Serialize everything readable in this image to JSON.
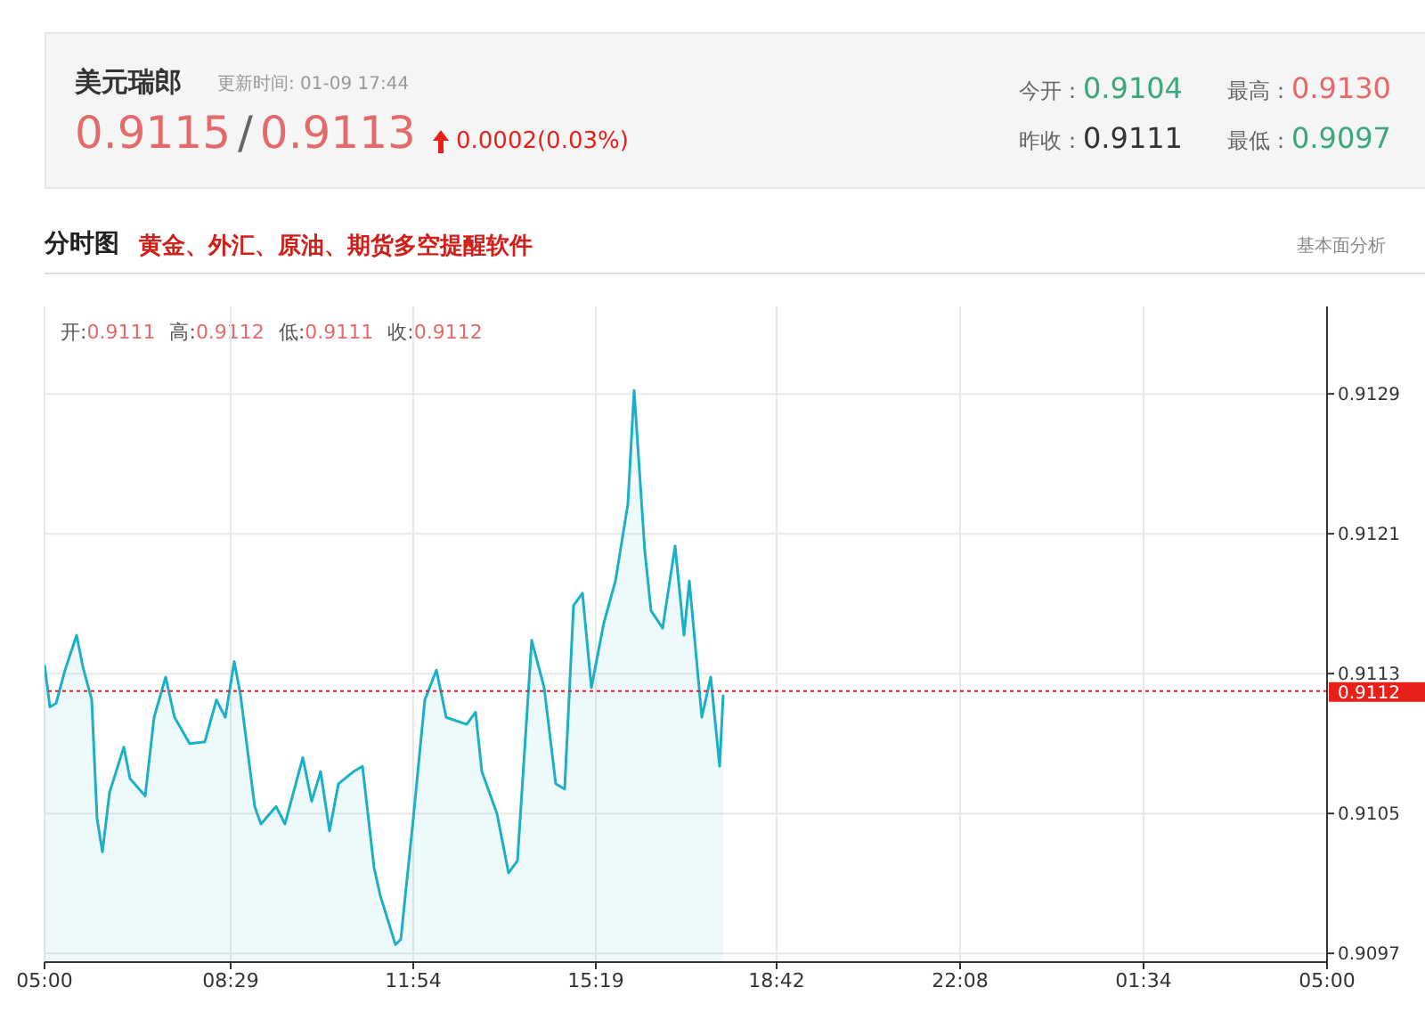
{
  "chart_data": {
    "type": "area",
    "title": "美元瑞郎",
    "subtitle": "更新时间: 01-09 17:44",
    "annotations": [
      "0.9115",
      "/",
      "0.9113",
      "0.0002(0.03%)",
      "今开：",
      "0.9104",
      "最高：",
      "0.9130",
      "昨收：",
      "0.9111",
      "最低：",
      "0.9097",
      "分时图",
      "黄金、外汇、原油、期货多空提醒软件",
      "基本面分析",
      "开:",
      "0.9111",
      "高:",
      "0.9112",
      "低:",
      "0.9111",
      "收:",
      "0.9112"
    ],
    "series": [
      {
        "color": "#1ab0c8",
        "x": [
          "--01-09T05:00",
          "--01-09T05:06",
          "--01-09T05:13",
          "--01-09T05:23",
          "--01-09T05:36",
          "--01-09T05:43",
          "--01-09T05:53",
          "--01-09T05:59",
          "--01-09T06:05",
          "--01-09T06:13",
          "--01-09T06:29",
          "--01-09T06:36",
          "--01-09T06:53",
          "--01-09T07:03",
          "--01-09T07:16",
          "--01-09T07:26",
          "--01-09T07:43",
          "--01-09T08:00",
          "--01-09T08:13",
          "--01-09T08:23",
          "--01-09T08:33",
          "--01-09T08:40",
          "--01-09T08:56",
          "--01-09T09:03",
          "--01-09T09:20",
          "--01-09T09:30",
          "--01-09T09:50",
          "--01-09T10:00",
          "--01-09T10:10",
          "--01-09T10:20",
          "--01-09T10:30",
          "--01-09T10:47",
          "--01-09T10:57",
          "--01-09T11:10",
          "--01-09T11:17",
          "--01-09T11:34",
          "--01-09T11:40",
          "--01-09T11:54",
          "--01-09T12:07",
          "--01-09T12:20",
          "--01-09T12:31",
          "--01-09T12:54",
          "--01-09T13:04",
          "--01-09T13:11",
          "--01-09T13:28",
          "--01-09T13:41",
          "--01-09T13:51",
          "--01-09T14:07",
          "--01-09T14:21",
          "--01-09T14:34",
          "--01-09T14:44",
          "--01-09T14:54",
          "--01-09T15:04",
          "--01-09T15:14",
          "--01-09T15:28",
          "--01-09T15:41",
          "--01-09T15:55",
          "--01-09T16:02",
          "--01-09T16:14",
          "--01-09T16:21",
          "--01-09T16:34",
          "--01-09T16:48",
          "--01-09T16:58",
          "--01-09T17:04",
          "--01-09T17:18",
          "--01-09T17:28",
          "--01-09T17:38",
          "--01-09T17:42"
        ],
        "values": [
          0.91135,
          0.91111,
          0.91113,
          0.91132,
          0.91152,
          0.91134,
          0.91115,
          0.91047,
          0.91028,
          0.91062,
          0.91088,
          0.9107,
          0.9106,
          0.91105,
          0.91128,
          0.91105,
          0.9109,
          0.91091,
          0.91115,
          0.91105,
          0.91137,
          0.91118,
          0.91054,
          0.91044,
          0.91054,
          0.91044,
          0.91082,
          0.91057,
          0.91074,
          0.9104,
          0.91067,
          0.91074,
          0.91077,
          0.91019,
          0.91003,
          0.90975,
          0.90978,
          0.91047,
          0.91115,
          0.91132,
          0.91105,
          0.91101,
          0.91108,
          0.91074,
          0.9105,
          0.91016,
          0.91023,
          0.91149,
          0.91122,
          0.91067,
          0.91064,
          0.91169,
          0.91176,
          0.91122,
          0.91159,
          0.91183,
          0.91227,
          0.91292,
          0.912,
          0.91166,
          0.91156,
          0.91203,
          0.91152,
          0.91183,
          0.91105,
          0.91128,
          0.91077,
          0.91118
        ]
      }
    ],
    "xlim": [
      "--01-09T05:00",
      "--01-10T05:00"
    ],
    "xticks": [
      {
        "value": "--01-09T05:00",
        "label": "05:00"
      },
      {
        "value": "--01-09T08:29",
        "label": "08:29"
      },
      {
        "value": "--01-09T11:54",
        "label": "11:54"
      },
      {
        "value": "--01-09T15:19",
        "label": "15:19"
      },
      {
        "value": "--01-09T18:42",
        "label": "18:42"
      },
      {
        "value": "--01-09T22:08",
        "label": "22:08"
      },
      {
        "value": "--01-10T01:34",
        "label": "01:34"
      },
      {
        "value": "--01-10T05:00",
        "label": "05:00"
      }
    ],
    "ylim": [
      0.90965,
      0.9134
    ],
    "yticks": [
      0.9097,
      0.9105,
      0.9113,
      0.9121,
      0.9129
    ],
    "ref_lines": [
      {
        "axis": "y",
        "value": 0.9112,
        "label": "0.9112",
        "color": "#e8201a",
        "line_style": "dotted"
      }
    ],
    "grid": true,
    "marker": "none",
    "line_style": "solid"
  }
}
